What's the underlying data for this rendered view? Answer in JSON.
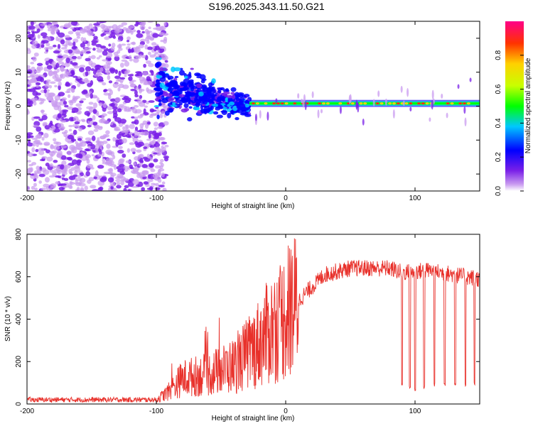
{
  "title": "S196.2025.343.11.50.G21",
  "chart_data": [
    {
      "type": "heatmap",
      "xlabel": "Height of straight line (km)",
      "ylabel": "Frequency (Hz)",
      "xlim": [
        -200,
        150
      ],
      "ylim": [
        -25,
        25
      ],
      "xticks": [
        -200,
        -100,
        0,
        100
      ],
      "yticks": [
        -20,
        -10,
        0,
        10,
        20
      ],
      "colorbar": {
        "label": "Normalized spectral amplitude",
        "range": [
          0,
          1
        ],
        "ticks": [
          "0.0",
          "0.2",
          "0.4",
          "0.6",
          "0.8"
        ],
        "tick_values": [
          0,
          0.2,
          0.4,
          0.6,
          0.8
        ]
      },
      "regions": [
        {
          "x_range": [
            -200,
            -92
          ],
          "description": "broadband noise",
          "amplitude": 0.05
        },
        {
          "x_range": [
            -100,
            -28
          ],
          "description": "scattered signal",
          "freq_center_hz": [
            6,
            0
          ],
          "amplitude": 0.3
        },
        {
          "x_range": [
            -28,
            150
          ],
          "description": "stable tone",
          "freq_center_hz": 0.8,
          "amplitude": 0.95
        }
      ]
    },
    {
      "type": "line",
      "xlabel": "Height of straight line (km)",
      "ylabel": "SNR (10 * v/v)",
      "xlim": [
        -200,
        150
      ],
      "ylim": [
        0,
        800
      ],
      "xticks": [
        -200,
        -100,
        0,
        100
      ],
      "yticks": [
        0,
        200,
        400,
        600,
        800
      ],
      "color": "#e8302a",
      "series_envelope": [
        {
          "x": -200,
          "y": 20
        },
        {
          "x": -100,
          "y": 20
        },
        {
          "x": -90,
          "y": 60
        },
        {
          "x": -80,
          "y": 120
        },
        {
          "x": -60,
          "y": 140
        },
        {
          "x": -40,
          "y": 180
        },
        {
          "x": -25,
          "y": 260
        },
        {
          "x": -10,
          "y": 360
        },
        {
          "x": 0,
          "y": 420
        },
        {
          "x": 15,
          "y": 520
        },
        {
          "x": 30,
          "y": 610
        },
        {
          "x": 50,
          "y": 640
        },
        {
          "x": 80,
          "y": 640
        },
        {
          "x": 90,
          "y": 620
        },
        {
          "x": 110,
          "y": 630
        },
        {
          "x": 150,
          "y": 590
        }
      ],
      "dropouts": [
        {
          "x": 90,
          "y": 80
        },
        {
          "x": 96,
          "y": 70
        },
        {
          "x": 100,
          "y": 60
        },
        {
          "x": 107,
          "y": 70
        },
        {
          "x": 115,
          "y": 80
        },
        {
          "x": 123,
          "y": 85
        },
        {
          "x": 131,
          "y": 85
        },
        {
          "x": 139,
          "y": 80
        },
        {
          "x": 146,
          "y": 85
        }
      ]
    }
  ]
}
